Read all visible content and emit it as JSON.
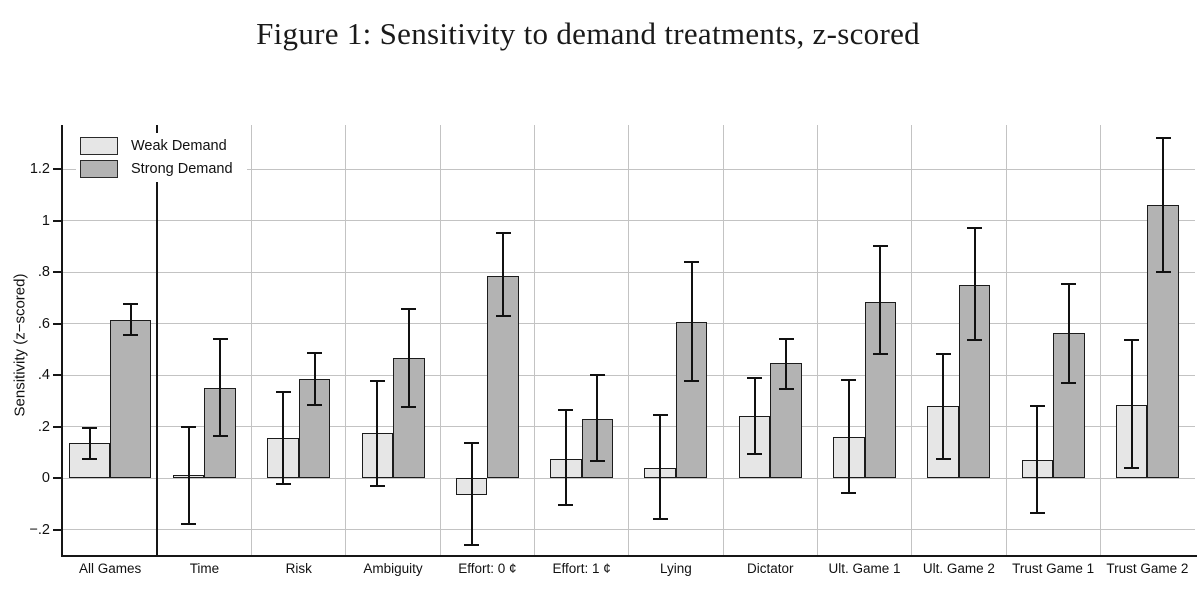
{
  "title": "Figure 1: Sensitivity to demand treatments, z-scored",
  "legend": {
    "items": [
      {
        "label": "Weak Demand",
        "color": "#e6e6e6"
      },
      {
        "label": "Strong Demand",
        "color": "#b3b3b3"
      }
    ]
  },
  "chart_data": {
    "type": "bar",
    "title": "Figure 1: Sensitivity to demand treatments, z-scored",
    "xlabel": "",
    "ylabel": "Sensitivity (z−scored)",
    "ylim": [
      -0.3,
      1.37
    ],
    "yticks": [
      -0.2,
      0,
      0.2,
      0.4,
      0.6,
      0.8,
      1,
      1.2
    ],
    "ytick_labels": [
      "−.2",
      "0",
      ".2",
      ".4",
      ".6",
      ".8",
      "1",
      "1.2"
    ],
    "grid": true,
    "legend_position": "top-left",
    "separator_after_first_category": true,
    "error_bars": true,
    "categories": [
      "All Games",
      "Time",
      "Risk",
      "Ambiguity",
      "Effort: 0 ¢",
      "Effort: 1 ¢",
      "Lying",
      "Dictator",
      "Ult. Game 1",
      "Ult. Game 2",
      "Trust Game 1",
      "Trust Game 2"
    ],
    "series": [
      {
        "name": "Weak Demand",
        "color": "#e6e6e6",
        "values": [
          0.135,
          0.01,
          0.155,
          0.175,
          -0.065,
          0.075,
          0.04,
          0.24,
          0.16,
          0.28,
          0.07,
          0.285
        ],
        "ci_low": [
          0.075,
          -0.18,
          -0.025,
          -0.03,
          -0.26,
          -0.105,
          -0.16,
          0.095,
          -0.06,
          0.075,
          -0.135,
          0.04
        ],
        "ci_high": [
          0.195,
          0.2,
          0.335,
          0.375,
          0.135,
          0.265,
          0.245,
          0.39,
          0.38,
          0.48,
          0.28,
          0.535
        ]
      },
      {
        "name": "Strong Demand",
        "color": "#b3b3b3",
        "values": [
          0.615,
          0.35,
          0.385,
          0.465,
          0.785,
          0.23,
          0.605,
          0.445,
          0.685,
          0.75,
          0.565,
          1.06
        ],
        "ci_low": [
          0.555,
          0.165,
          0.285,
          0.275,
          0.63,
          0.065,
          0.375,
          0.345,
          0.48,
          0.535,
          0.37,
          0.8
        ],
        "ci_high": [
          0.675,
          0.54,
          0.485,
          0.655,
          0.95,
          0.4,
          0.84,
          0.54,
          0.9,
          0.97,
          0.755,
          1.32
        ]
      }
    ]
  }
}
